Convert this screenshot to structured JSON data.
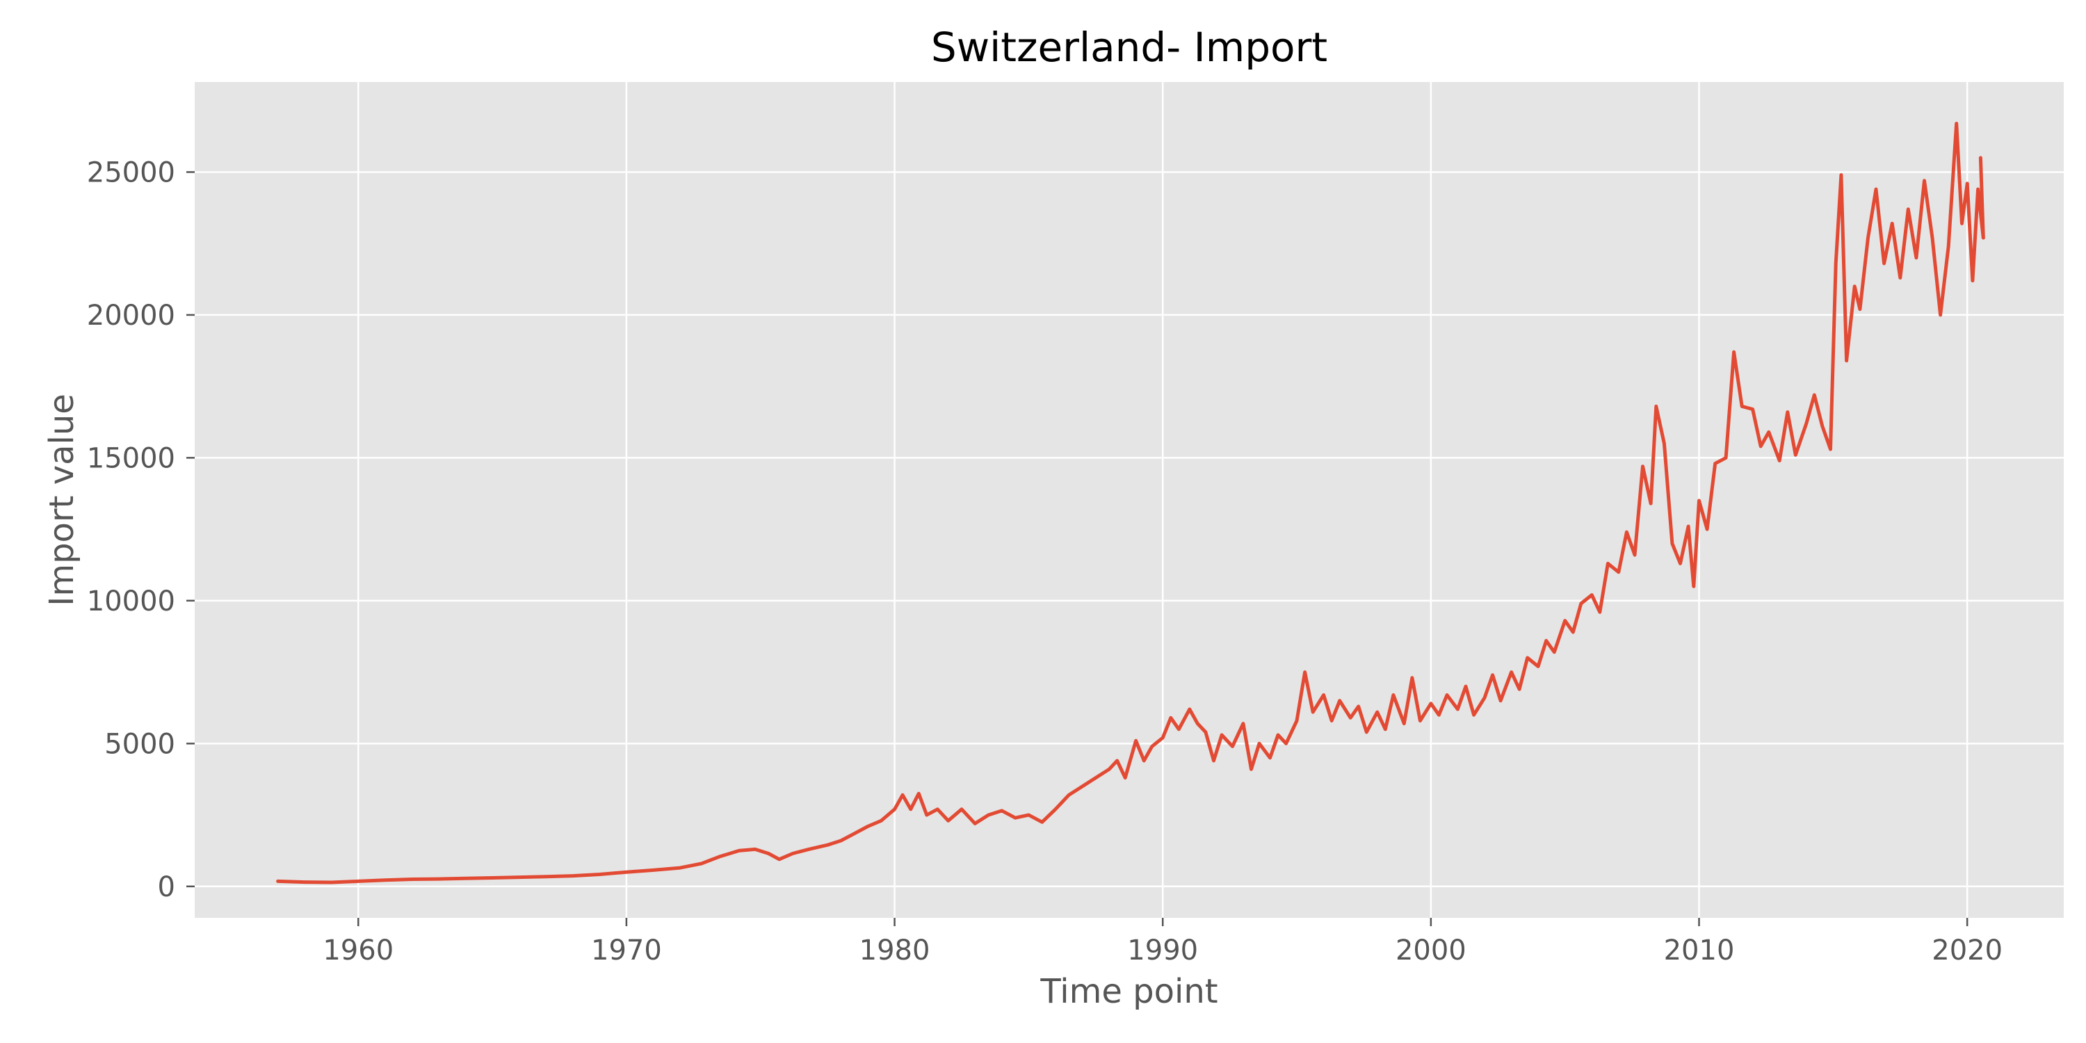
{
  "colors": {
    "plot_background": "#e5e5e5",
    "grid": "#ffffff",
    "series": "#e24a33",
    "tick_text": "#555555"
  },
  "chart_data": {
    "type": "line",
    "title": "Switzerland- Import",
    "xlabel": "Time point",
    "ylabel": "Import value",
    "xlim": [
      1953.9,
      2023.6
    ],
    "ylim": [
      -1100,
      28150
    ],
    "x_ticks": [
      1960,
      1970,
      1980,
      1990,
      2000,
      2010,
      2020
    ],
    "y_ticks": [
      0,
      5000,
      10000,
      15000,
      20000,
      25000
    ],
    "x_tick_labels": [
      "1960",
      "1970",
      "1980",
      "1990",
      "2000",
      "2010",
      "2020"
    ],
    "y_tick_labels": [
      "0",
      "5000",
      "10000",
      "15000",
      "20000",
      "25000"
    ],
    "grid": true,
    "legend": "none",
    "series": [
      {
        "points": [
          [
            1957.0,
            180
          ],
          [
            1958.0,
            150
          ],
          [
            1959.0,
            140
          ],
          [
            1960.0,
            180
          ],
          [
            1961.0,
            220
          ],
          [
            1962.0,
            250
          ],
          [
            1963.0,
            260
          ],
          [
            1964.0,
            280
          ],
          [
            1965.0,
            300
          ],
          [
            1966.0,
            320
          ],
          [
            1967.0,
            340
          ],
          [
            1968.0,
            370
          ],
          [
            1969.0,
            420
          ],
          [
            1970.0,
            500
          ],
          [
            1971.0,
            570
          ],
          [
            1972.0,
            650
          ],
          [
            1972.8,
            800
          ],
          [
            1973.5,
            1050
          ],
          [
            1974.2,
            1250
          ],
          [
            1974.8,
            1300
          ],
          [
            1975.3,
            1150
          ],
          [
            1975.7,
            950
          ],
          [
            1976.2,
            1150
          ],
          [
            1976.8,
            1300
          ],
          [
            1977.5,
            1450
          ],
          [
            1978.0,
            1600
          ],
          [
            1978.5,
            1850
          ],
          [
            1979.0,
            2100
          ],
          [
            1979.5,
            2300
          ],
          [
            1980.0,
            2700
          ],
          [
            1980.3,
            3200
          ],
          [
            1980.6,
            2700
          ],
          [
            1980.9,
            3250
          ],
          [
            1981.2,
            2500
          ],
          [
            1981.6,
            2700
          ],
          [
            1982.0,
            2300
          ],
          [
            1982.5,
            2700
          ],
          [
            1983.0,
            2200
          ],
          [
            1983.5,
            2500
          ],
          [
            1984.0,
            2650
          ],
          [
            1984.5,
            2400
          ],
          [
            1985.0,
            2500
          ],
          [
            1985.5,
            2250
          ],
          [
            1986.0,
            2700
          ],
          [
            1986.5,
            3200
          ],
          [
            1987.0,
            3500
          ],
          [
            1987.5,
            3800
          ],
          [
            1988.0,
            4100
          ],
          [
            1988.3,
            4400
          ],
          [
            1988.6,
            3800
          ],
          [
            1989.0,
            5100
          ],
          [
            1989.3,
            4400
          ],
          [
            1989.6,
            4900
          ],
          [
            1990.0,
            5200
          ],
          [
            1990.3,
            5900
          ],
          [
            1990.6,
            5500
          ],
          [
            1991.0,
            6200
          ],
          [
            1991.3,
            5700
          ],
          [
            1991.6,
            5400
          ],
          [
            1991.9,
            4400
          ],
          [
            1992.2,
            5300
          ],
          [
            1992.6,
            4900
          ],
          [
            1993.0,
            5700
          ],
          [
            1993.3,
            4100
          ],
          [
            1993.6,
            5000
          ],
          [
            1994.0,
            4500
          ],
          [
            1994.3,
            5300
          ],
          [
            1994.6,
            5000
          ],
          [
            1995.0,
            5800
          ],
          [
            1995.3,
            7500
          ],
          [
            1995.6,
            6100
          ],
          [
            1996.0,
            6700
          ],
          [
            1996.3,
            5800
          ],
          [
            1996.6,
            6500
          ],
          [
            1997.0,
            5900
          ],
          [
            1997.3,
            6300
          ],
          [
            1997.6,
            5400
          ],
          [
            1998.0,
            6100
          ],
          [
            1998.3,
            5500
          ],
          [
            1998.6,
            6700
          ],
          [
            1999.0,
            5700
          ],
          [
            1999.3,
            7300
          ],
          [
            1999.6,
            5800
          ],
          [
            2000.0,
            6400
          ],
          [
            2000.3,
            6000
          ],
          [
            2000.6,
            6700
          ],
          [
            2001.0,
            6200
          ],
          [
            2001.3,
            7000
          ],
          [
            2001.6,
            6000
          ],
          [
            2002.0,
            6600
          ],
          [
            2002.3,
            7400
          ],
          [
            2002.6,
            6500
          ],
          [
            2003.0,
            7500
          ],
          [
            2003.3,
            6900
          ],
          [
            2003.6,
            8000
          ],
          [
            2004.0,
            7700
          ],
          [
            2004.3,
            8600
          ],
          [
            2004.6,
            8200
          ],
          [
            2005.0,
            9300
          ],
          [
            2005.3,
            8900
          ],
          [
            2005.6,
            9900
          ],
          [
            2006.0,
            10200
          ],
          [
            2006.3,
            9600
          ],
          [
            2006.6,
            11300
          ],
          [
            2007.0,
            11000
          ],
          [
            2007.3,
            12400
          ],
          [
            2007.6,
            11600
          ],
          [
            2007.9,
            14700
          ],
          [
            2008.2,
            13400
          ],
          [
            2008.4,
            16800
          ],
          [
            2008.7,
            15500
          ],
          [
            2009.0,
            12000
          ],
          [
            2009.3,
            11300
          ],
          [
            2009.6,
            12600
          ],
          [
            2009.8,
            10500
          ],
          [
            2010.0,
            13500
          ],
          [
            2010.3,
            12500
          ],
          [
            2010.6,
            14800
          ],
          [
            2011.0,
            15000
          ],
          [
            2011.3,
            18700
          ],
          [
            2011.6,
            16800
          ],
          [
            2012.0,
            16700
          ],
          [
            2012.3,
            15400
          ],
          [
            2012.6,
            15900
          ],
          [
            2013.0,
            14900
          ],
          [
            2013.3,
            16600
          ],
          [
            2013.6,
            15100
          ],
          [
            2014.0,
            16200
          ],
          [
            2014.3,
            17200
          ],
          [
            2014.6,
            16100
          ],
          [
            2014.9,
            15300
          ],
          [
            2015.1,
            21800
          ],
          [
            2015.3,
            24900
          ],
          [
            2015.5,
            18400
          ],
          [
            2015.8,
            21000
          ],
          [
            2016.0,
            20200
          ],
          [
            2016.3,
            22700
          ],
          [
            2016.6,
            24400
          ],
          [
            2016.9,
            21800
          ],
          [
            2017.2,
            23200
          ],
          [
            2017.5,
            21300
          ],
          [
            2017.8,
            23700
          ],
          [
            2018.1,
            22000
          ],
          [
            2018.4,
            24700
          ],
          [
            2018.7,
            22700
          ],
          [
            2019.0,
            20000
          ],
          [
            2019.3,
            22400
          ],
          [
            2019.6,
            26700
          ],
          [
            2019.8,
            23200
          ],
          [
            2020.0,
            24600
          ],
          [
            2020.2,
            21200
          ],
          [
            2020.4,
            24400
          ],
          [
            2020.6,
            22700
          ],
          [
            2020.5,
            25500
          ]
        ]
      }
    ]
  }
}
